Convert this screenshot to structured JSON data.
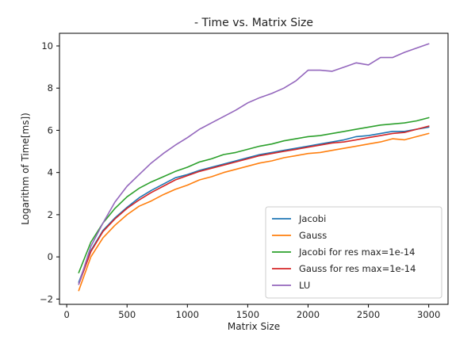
{
  "chart_data": {
    "type": "line",
    "title": "- Time vs. Matrix Size",
    "xlabel": "Matrix Size",
    "ylabel": "Logarithm of Time[ms])",
    "xlim": [
      -60,
      3160
    ],
    "ylim": [
      -2.25,
      10.6
    ],
    "xticks": [
      0,
      500,
      1000,
      1500,
      2000,
      2500,
      3000
    ],
    "yticks": [
      -2,
      0,
      2,
      4,
      6,
      8,
      10
    ],
    "grid": false,
    "legend_position": "lower right",
    "x": [
      100,
      200,
      300,
      400,
      500,
      600,
      700,
      800,
      900,
      1000,
      1100,
      1200,
      1300,
      1400,
      1500,
      1600,
      1700,
      1800,
      1900,
      2000,
      2100,
      2200,
      2300,
      2400,
      2500,
      2600,
      2700,
      2800,
      2900,
      3000
    ],
    "series": [
      {
        "name": "Jacobi",
        "color": "#1f77b4",
        "values": [
          -1.2,
          0.3,
          1.25,
          1.85,
          2.35,
          2.8,
          3.15,
          3.45,
          3.75,
          3.9,
          4.1,
          4.25,
          4.4,
          4.55,
          4.7,
          4.85,
          4.95,
          5.05,
          5.15,
          5.25,
          5.35,
          5.45,
          5.55,
          5.7,
          5.75,
          5.85,
          5.95,
          5.95,
          6.05,
          6.15
        ]
      },
      {
        "name": "Gauss",
        "color": "#ff7f0e",
        "values": [
          -1.6,
          0.0,
          0.9,
          1.5,
          2.0,
          2.4,
          2.65,
          2.95,
          3.2,
          3.4,
          3.65,
          3.8,
          4.0,
          4.15,
          4.3,
          4.45,
          4.55,
          4.7,
          4.8,
          4.9,
          4.95,
          5.05,
          5.15,
          5.25,
          5.35,
          5.45,
          5.6,
          5.55,
          5.7,
          5.85
        ]
      },
      {
        "name": "Jacobi for res max=1e-14",
        "color": "#2ca02c",
        "values": [
          -0.75,
          0.7,
          1.6,
          2.3,
          2.85,
          3.25,
          3.55,
          3.8,
          4.05,
          4.25,
          4.5,
          4.65,
          4.85,
          4.95,
          5.1,
          5.25,
          5.35,
          5.5,
          5.6,
          5.7,
          5.75,
          5.85,
          5.95,
          6.05,
          6.15,
          6.25,
          6.3,
          6.35,
          6.45,
          6.6
        ]
      },
      {
        "name": "Gauss for res max=1e-14",
        "color": "#d62728",
        "values": [
          -1.3,
          0.25,
          1.2,
          1.8,
          2.3,
          2.7,
          3.05,
          3.35,
          3.65,
          3.85,
          4.05,
          4.2,
          4.35,
          4.5,
          4.65,
          4.8,
          4.9,
          5.0,
          5.1,
          5.2,
          5.3,
          5.4,
          5.45,
          5.55,
          5.65,
          5.75,
          5.85,
          5.9,
          6.05,
          6.2
        ]
      },
      {
        "name": "LU",
        "color": "#9467bd",
        "values": [
          -1.3,
          0.5,
          1.6,
          2.6,
          3.35,
          3.9,
          4.45,
          4.9,
          5.3,
          5.65,
          6.05,
          6.35,
          6.65,
          6.95,
          7.3,
          7.55,
          7.75,
          8.0,
          8.35,
          8.85,
          8.85,
          8.8,
          9.0,
          9.2,
          9.1,
          9.45,
          9.45,
          9.7,
          9.9,
          10.1
        ]
      }
    ]
  }
}
